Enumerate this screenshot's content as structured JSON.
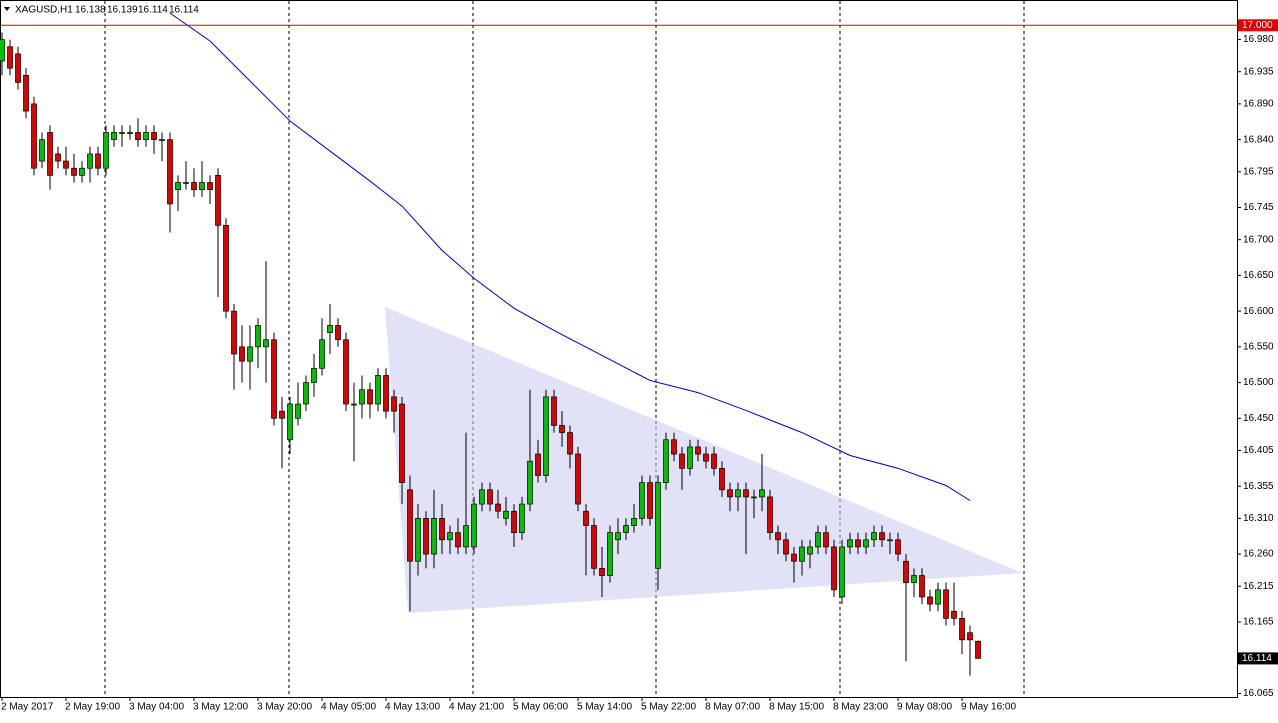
{
  "chart_data": {
    "type": "candlestick",
    "symbol": "XAGUSD,H1",
    "ylim": [
      16.06,
      17.034
    ],
    "yticks": [
      {
        "value": 16.98,
        "label": "16.980"
      },
      16.935,
      {
        "value": 16.89,
        "label": "16.890"
      },
      {
        "value": 16.84,
        "label": "16.840"
      },
      16.795,
      16.745,
      {
        "value": 16.7,
        "label": "16.700"
      },
      {
        "value": 16.65,
        "label": "16.650"
      },
      {
        "value": 16.6,
        "label": "16.600"
      },
      {
        "value": 16.55,
        "label": "16.550"
      },
      {
        "value": 16.5,
        "label": "16.500"
      },
      {
        "value": 16.45,
        "label": "16.450"
      },
      16.405,
      16.355,
      {
        "value": 16.31,
        "label": "16.310"
      },
      {
        "value": 16.26,
        "label": "16.260"
      },
      16.215,
      16.165,
      16.065
    ],
    "xticks": [
      {
        "value": 0,
        "label": "2 May 2017"
      },
      {
        "value": 8,
        "label": "2 May 19:00"
      },
      {
        "value": 16,
        "label": "3 May 04:00"
      },
      {
        "value": 24,
        "label": "3 May 12:00"
      },
      {
        "value": 32,
        "label": "3 May 20:00"
      },
      {
        "value": 40,
        "label": "4 May 05:00"
      },
      {
        "value": 48,
        "label": "4 May 13:00"
      },
      {
        "value": 56,
        "label": "4 May 21:00"
      },
      {
        "value": 64,
        "label": "5 May 06:00"
      },
      {
        "value": 72,
        "label": "5 May 14:00"
      },
      {
        "value": 80,
        "label": "5 May 22:00"
      },
      {
        "value": 88,
        "label": "8 May 07:00"
      },
      {
        "value": 96,
        "label": "8 May 15:00"
      },
      {
        "value": 104,
        "label": "8 May 23:00"
      },
      {
        "value": 112,
        "label": "9 May 08:00"
      },
      {
        "value": 120,
        "label": "9 May 16:00"
      }
    ],
    "bull_color": "#00c000",
    "bear_color": "#e00000",
    "level": {
      "value": 17.0,
      "label": "17.000",
      "color": "#e00000"
    },
    "current_price": {
      "value": 16.114,
      "label": "16.114"
    },
    "moving_average": {
      "color": "#0000c8",
      "x": [
        21,
        26,
        31,
        36,
        41,
        46,
        50,
        55,
        59,
        64,
        69,
        75,
        81,
        87,
        93,
        100,
        106,
        112,
        118,
        121
      ],
      "values": [
        17.017,
        16.978,
        16.922,
        16.866,
        16.824,
        16.782,
        16.747,
        16.685,
        16.646,
        16.604,
        16.573,
        16.538,
        16.503,
        16.486,
        16.461,
        16.43,
        16.398,
        16.38,
        16.356,
        16.335
      ]
    },
    "ohlc": [
      [
        16.95,
        16.99,
        16.93,
        16.98
      ],
      [
        16.97,
        16.98,
        16.93,
        16.94
      ],
      [
        16.96,
        16.97,
        16.91,
        16.92
      ],
      [
        16.93,
        16.94,
        16.87,
        16.88
      ],
      [
        16.89,
        16.9,
        16.79,
        16.8
      ],
      [
        16.81,
        16.85,
        16.8,
        16.84
      ],
      [
        16.85,
        16.86,
        16.77,
        16.79
      ],
      [
        16.82,
        16.83,
        16.8,
        16.81
      ],
      [
        16.81,
        16.83,
        16.79,
        16.8
      ],
      [
        16.8,
        16.82,
        16.78,
        16.79
      ],
      [
        16.79,
        16.81,
        16.78,
        16.8
      ],
      [
        16.8,
        16.83,
        16.78,
        16.82
      ],
      [
        16.82,
        16.83,
        16.79,
        16.8
      ],
      [
        16.8,
        16.86,
        16.79,
        16.85
      ],
      [
        16.84,
        16.86,
        16.83,
        16.85
      ],
      [
        16.85,
        16.86,
        16.83,
        16.85
      ],
      [
        16.85,
        16.86,
        16.84,
        16.85
      ],
      [
        16.85,
        16.87,
        16.83,
        16.84
      ],
      [
        16.84,
        16.86,
        16.83,
        16.85
      ],
      [
        16.85,
        16.86,
        16.82,
        16.84
      ],
      [
        16.84,
        16.85,
        16.81,
        16.84
      ],
      [
        16.84,
        16.85,
        16.71,
        16.75
      ],
      [
        16.77,
        16.79,
        16.74,
        16.78
      ],
      [
        16.78,
        16.81,
        16.77,
        16.78
      ],
      [
        16.78,
        16.8,
        16.76,
        16.77
      ],
      [
        16.77,
        16.81,
        16.76,
        16.78
      ],
      [
        16.78,
        16.79,
        16.75,
        16.77
      ],
      [
        16.79,
        16.8,
        16.62,
        16.72
      ],
      [
        16.72,
        16.73,
        16.59,
        16.6
      ],
      [
        16.6,
        16.61,
        16.49,
        16.54
      ],
      [
        16.55,
        16.58,
        16.5,
        16.53
      ],
      [
        16.53,
        16.58,
        16.49,
        16.55
      ],
      [
        16.55,
        16.59,
        16.52,
        16.58
      ],
      [
        16.55,
        16.67,
        16.5,
        16.56
      ],
      [
        16.56,
        16.57,
        16.44,
        16.45
      ],
      [
        16.46,
        16.48,
        16.38,
        16.45
      ],
      [
        16.42,
        16.48,
        16.4,
        16.47
      ],
      [
        16.45,
        16.5,
        16.44,
        16.47
      ],
      [
        16.47,
        16.51,
        16.46,
        16.5
      ],
      [
        16.5,
        16.54,
        16.48,
        16.52
      ],
      [
        16.52,
        16.59,
        16.51,
        16.56
      ],
      [
        16.57,
        16.61,
        16.54,
        16.58
      ],
      [
        16.58,
        16.59,
        16.55,
        16.56
      ],
      [
        16.56,
        16.57,
        16.46,
        16.47
      ],
      [
        16.47,
        16.5,
        16.39,
        16.47
      ],
      [
        16.47,
        16.51,
        16.45,
        16.49
      ],
      [
        16.49,
        16.5,
        16.45,
        16.47
      ],
      [
        16.47,
        16.52,
        16.46,
        16.51
      ],
      [
        16.51,
        16.52,
        16.45,
        16.46
      ],
      [
        16.48,
        16.49,
        16.43,
        16.46
      ],
      [
        16.47,
        16.48,
        16.33,
        16.36
      ],
      [
        16.35,
        16.37,
        16.18,
        16.25
      ],
      [
        16.25,
        16.33,
        16.23,
        16.31
      ],
      [
        16.31,
        16.32,
        16.24,
        16.26
      ],
      [
        16.26,
        16.35,
        16.24,
        16.31
      ],
      [
        16.31,
        16.33,
        16.26,
        16.28
      ],
      [
        16.28,
        16.3,
        16.26,
        16.29
      ],
      [
        16.29,
        16.31,
        16.26,
        16.27
      ],
      [
        16.27,
        16.43,
        16.26,
        16.3
      ],
      [
        16.27,
        16.34,
        16.26,
        16.33
      ],
      [
        16.33,
        16.36,
        16.32,
        16.35
      ],
      [
        16.35,
        16.36,
        16.32,
        16.33
      ],
      [
        16.33,
        16.35,
        16.31,
        16.32
      ],
      [
        16.31,
        16.34,
        16.3,
        16.32
      ],
      [
        16.32,
        16.33,
        16.27,
        16.29
      ],
      [
        16.29,
        16.34,
        16.28,
        16.33
      ],
      [
        16.33,
        16.49,
        16.32,
        16.39
      ],
      [
        16.4,
        16.42,
        16.36,
        16.37
      ],
      [
        16.37,
        16.49,
        16.36,
        16.48
      ],
      [
        16.48,
        16.49,
        16.43,
        16.44
      ],
      [
        16.44,
        16.46,
        16.41,
        16.43
      ],
      [
        16.43,
        16.44,
        16.38,
        16.4
      ],
      [
        16.4,
        16.41,
        16.32,
        16.33
      ],
      [
        16.32,
        16.33,
        16.23,
        16.3
      ],
      [
        16.3,
        16.31,
        16.23,
        16.24
      ],
      [
        16.24,
        16.27,
        16.2,
        16.23
      ],
      [
        16.23,
        16.3,
        16.22,
        16.29
      ],
      [
        16.28,
        16.31,
        16.26,
        16.29
      ],
      [
        16.29,
        16.31,
        16.28,
        16.3
      ],
      [
        16.3,
        16.33,
        16.29,
        16.31
      ],
      [
        16.31,
        16.37,
        16.3,
        16.36
      ],
      [
        16.36,
        16.37,
        16.3,
        16.31
      ],
      [
        16.24,
        16.37,
        16.21,
        16.36
      ],
      [
        16.36,
        16.43,
        16.35,
        16.42
      ],
      [
        16.42,
        16.43,
        16.39,
        16.4
      ],
      [
        16.4,
        16.41,
        16.35,
        16.38
      ],
      [
        16.38,
        16.42,
        16.37,
        16.41
      ],
      [
        16.41,
        16.42,
        16.39,
        16.4
      ],
      [
        16.4,
        16.41,
        16.38,
        16.39
      ],
      [
        16.4,
        16.41,
        16.37,
        16.38
      ],
      [
        16.38,
        16.39,
        16.34,
        16.35
      ],
      [
        16.35,
        16.36,
        16.32,
        16.34
      ],
      [
        16.34,
        16.36,
        16.32,
        16.35
      ],
      [
        16.35,
        16.36,
        16.26,
        16.34
      ],
      [
        16.34,
        16.35,
        16.31,
        16.34
      ],
      [
        16.34,
        16.4,
        16.32,
        16.35
      ],
      [
        16.34,
        16.35,
        16.28,
        16.29
      ],
      [
        16.29,
        16.3,
        16.26,
        16.28
      ],
      [
        16.28,
        16.29,
        16.25,
        16.26
      ],
      [
        16.26,
        16.27,
        16.22,
        16.25
      ],
      [
        16.25,
        16.28,
        16.23,
        16.27
      ],
      [
        16.26,
        16.28,
        16.24,
        16.27
      ],
      [
        16.27,
        16.3,
        16.26,
        16.29
      ],
      [
        16.29,
        16.3,
        16.26,
        16.27
      ],
      [
        16.27,
        16.28,
        16.2,
        16.21
      ],
      [
        16.2,
        16.28,
        16.19,
        16.27
      ],
      [
        16.27,
        16.29,
        16.26,
        16.28
      ],
      [
        16.28,
        16.29,
        16.26,
        16.27
      ],
      [
        16.27,
        16.29,
        16.26,
        16.28
      ],
      [
        16.28,
        16.3,
        16.27,
        16.29
      ],
      [
        16.29,
        16.3,
        16.27,
        16.28
      ],
      [
        16.28,
        16.29,
        16.26,
        16.28
      ],
      [
        16.28,
        16.29,
        16.25,
        16.26
      ],
      [
        16.25,
        16.26,
        16.11,
        16.22
      ],
      [
        16.22,
        16.24,
        16.2,
        16.23
      ],
      [
        16.23,
        16.24,
        16.19,
        16.2
      ],
      [
        16.2,
        16.21,
        16.18,
        16.19
      ],
      [
        16.19,
        16.22,
        16.18,
        16.21
      ],
      [
        16.21,
        16.22,
        16.16,
        16.17
      ],
      [
        16.18,
        16.22,
        16.16,
        16.17
      ],
      [
        16.17,
        16.18,
        16.12,
        16.14
      ],
      [
        16.15,
        16.16,
        16.09,
        16.14
      ],
      [
        16.138,
        16.139,
        16.114,
        16.114
      ]
    ]
  }
}
